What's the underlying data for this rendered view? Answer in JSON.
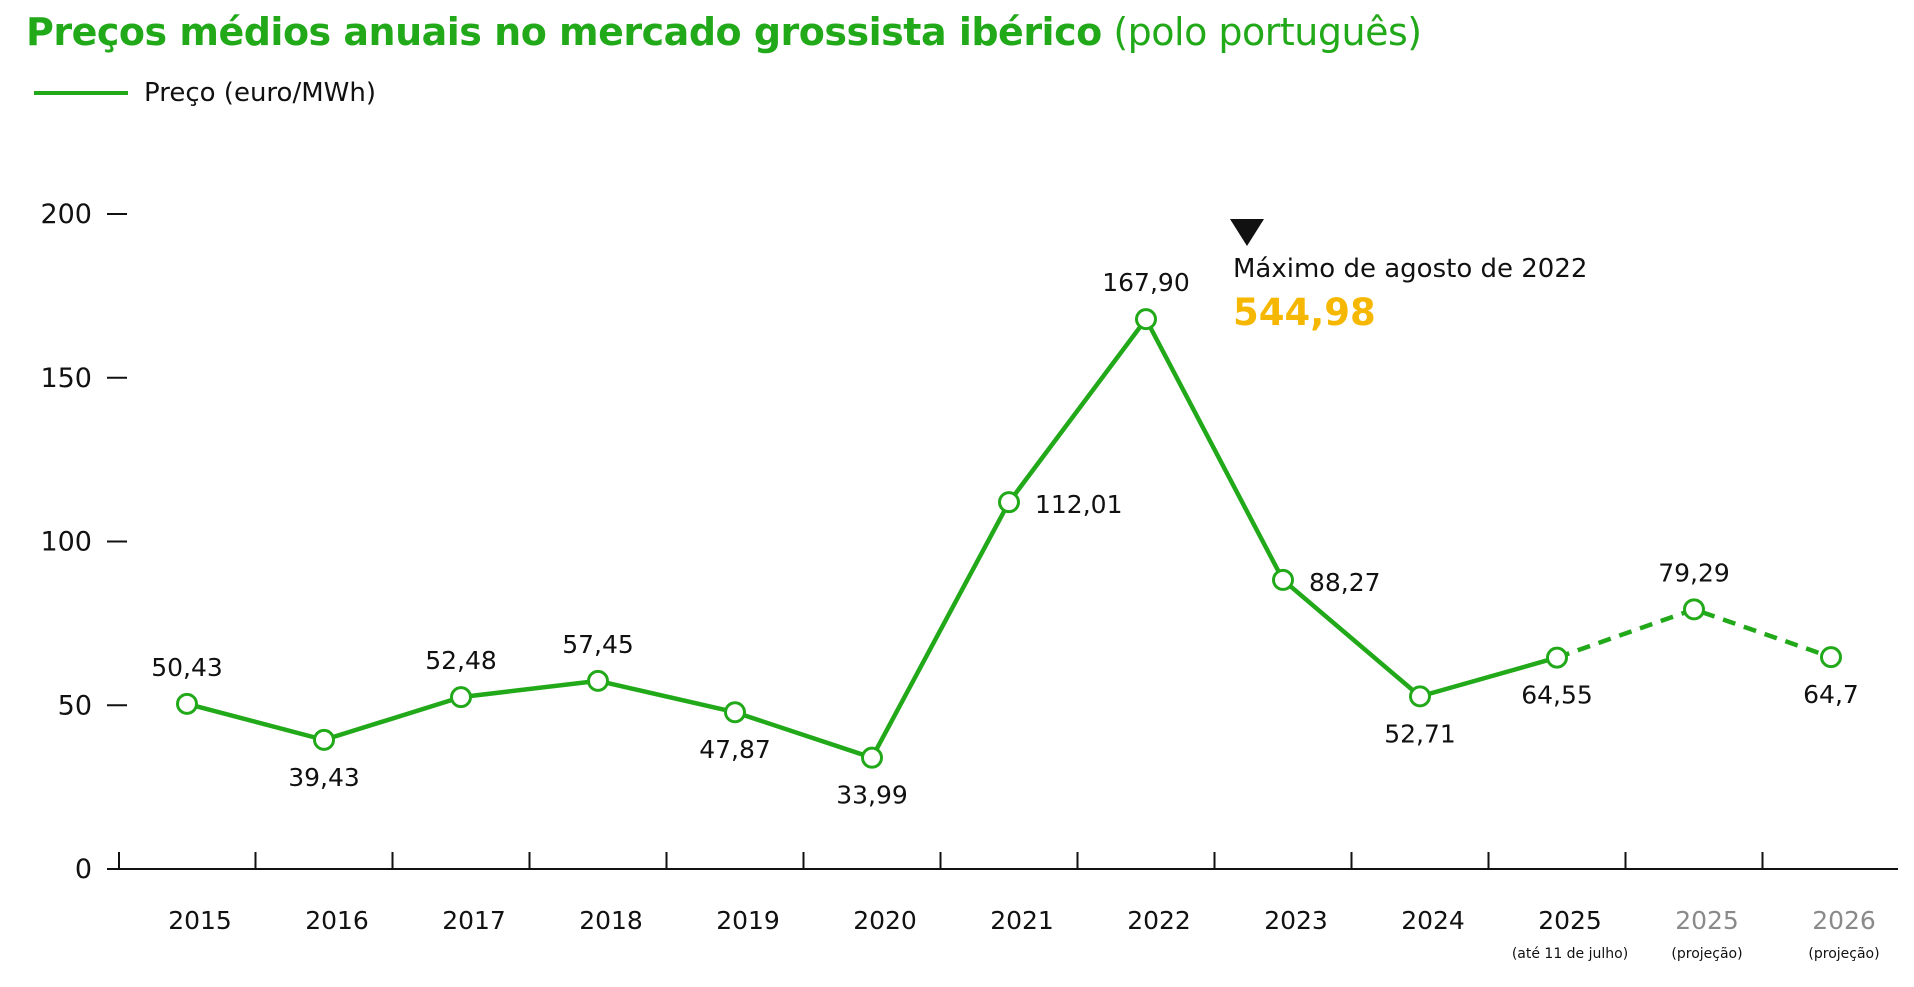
{
  "title": {
    "bold": "Preços médios anuais no mercado grossista ibérico",
    "light": "(polo português)"
  },
  "legend": {
    "label": "Preço (euro/MWh)"
  },
  "colors": {
    "line": "#22a91a",
    "highlight": "#f5b700",
    "axis": "#111111",
    "projection_label": "#8a8a8a"
  },
  "annotation": {
    "icon": "triangle-down-icon",
    "text": "Máximo de agosto de 2022",
    "value": "544,98"
  },
  "chart_data": {
    "type": "line",
    "ylim": [
      0,
      200
    ],
    "yticks": [
      0,
      50,
      100,
      150,
      200
    ],
    "ytick_labels": [
      "0",
      "50",
      "100",
      "150",
      "200"
    ],
    "grid": false,
    "legend_position": "top-left",
    "categories": [
      {
        "label": "2015",
        "sub": "",
        "projection": false
      },
      {
        "label": "2016",
        "sub": "",
        "projection": false
      },
      {
        "label": "2017",
        "sub": "",
        "projection": false
      },
      {
        "label": "2018",
        "sub": "",
        "projection": false
      },
      {
        "label": "2019",
        "sub": "",
        "projection": false
      },
      {
        "label": "2020",
        "sub": "",
        "projection": false
      },
      {
        "label": "2021",
        "sub": "",
        "projection": false
      },
      {
        "label": "2022",
        "sub": "",
        "projection": false
      },
      {
        "label": "2023",
        "sub": "",
        "projection": false
      },
      {
        "label": "2024",
        "sub": "",
        "projection": false
      },
      {
        "label": "2025",
        "sub": "(até 11 de julho)",
        "projection": false
      },
      {
        "label": "2025",
        "sub": "(projeção)",
        "projection": true
      },
      {
        "label": "2026",
        "sub": "(projeção)",
        "projection": true
      }
    ],
    "series": [
      {
        "name": "Preço (euro/MWh)",
        "values": [
          50.43,
          39.43,
          52.48,
          57.45,
          47.87,
          33.99,
          112.01,
          167.9,
          88.27,
          52.71,
          64.55,
          79.29,
          64.7
        ],
        "labels": [
          "50,43",
          "39,43",
          "52,48",
          "57,45",
          "47,87",
          "33,99",
          "112,01",
          "167,90",
          "88,27",
          "52,71",
          "64,55",
          "79,29",
          "64,7"
        ],
        "label_positions": [
          "above",
          "below",
          "above",
          "above",
          "below",
          "below",
          "right",
          "above",
          "right",
          "below",
          "below",
          "above",
          "below"
        ],
        "dashed_from_index": 10
      }
    ]
  }
}
